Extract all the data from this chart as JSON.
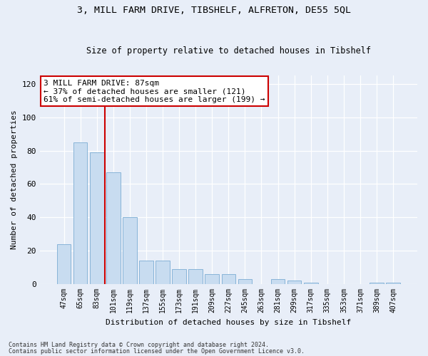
{
  "title1": "3, MILL FARM DRIVE, TIBSHELF, ALFRETON, DE55 5QL",
  "title2": "Size of property relative to detached houses in Tibshelf",
  "xlabel": "Distribution of detached houses by size in Tibshelf",
  "ylabel": "Number of detached properties",
  "categories": [
    "47sqm",
    "65sqm",
    "83sqm",
    "101sqm",
    "119sqm",
    "137sqm",
    "155sqm",
    "173sqm",
    "191sqm",
    "209sqm",
    "227sqm",
    "245sqm",
    "263sqm",
    "281sqm",
    "299sqm",
    "317sqm",
    "335sqm",
    "353sqm",
    "371sqm",
    "389sqm",
    "407sqm"
  ],
  "values": [
    24,
    85,
    79,
    67,
    40,
    14,
    14,
    9,
    9,
    6,
    6,
    3,
    0,
    3,
    2,
    1,
    0,
    0,
    0,
    1,
    1
  ],
  "bar_color": "#c8dcf0",
  "bar_edge_color": "#88b4d8",
  "ref_line_x": 2.5,
  "ref_line_color": "#cc0000",
  "annotation_text": "3 MILL FARM DRIVE: 87sqm\n← 37% of detached houses are smaller (121)\n61% of semi-detached houses are larger (199) →",
  "annotation_box_color": "#ffffff",
  "annotation_box_edge": "#cc0000",
  "ylim": [
    0,
    125
  ],
  "yticks": [
    0,
    20,
    40,
    60,
    80,
    100,
    120
  ],
  "footer1": "Contains HM Land Registry data © Crown copyright and database right 2024.",
  "footer2": "Contains public sector information licensed under the Open Government Licence v3.0.",
  "bg_color": "#e8eef8",
  "plot_bg_color": "#e8eef8"
}
